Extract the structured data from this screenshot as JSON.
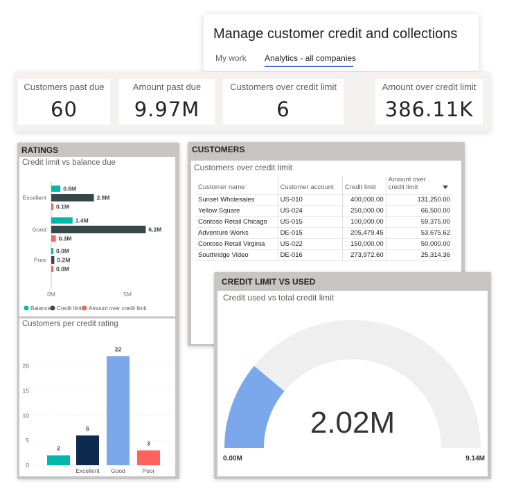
{
  "header": {
    "title": "Manage customer credit and collections",
    "tabs": [
      {
        "label": "My work"
      },
      {
        "label": "Analytics - all companies"
      }
    ]
  },
  "kpis": [
    {
      "label": "Customers past due",
      "value": "60"
    },
    {
      "label": "Amount past due",
      "value": "9.97M"
    },
    {
      "label": "Customers over credit limit",
      "value": "6"
    },
    {
      "label": "Amount over credit limit",
      "value": "386.11K"
    }
  ],
  "ratings": {
    "title": "RATINGS",
    "bar_chart_subtitle": "Credit limit vs balance due",
    "column_chart_subtitle": "Customers per credit rating"
  },
  "customers": {
    "title": "CUSTOMERS",
    "subtitle": "Customers over credit limit",
    "columns": [
      "Customer name",
      "Customer account",
      "Credit limit",
      "Amount over credit limit"
    ],
    "rows": [
      [
        "Sunset Wholesales",
        "US-010",
        "400,000.00",
        "131,250.00"
      ],
      [
        "Yellow Square",
        "US-024",
        "250,000.00",
        "66,500.00"
      ],
      [
        "Contoso Retail Chicago",
        "US-015",
        "100,000.00",
        "59,375.00"
      ],
      [
        "Adventure Works",
        "DE-015",
        "205,479.45",
        "53,675.62"
      ],
      [
        "Contoso Retail Virginia",
        "US-022",
        "150,000.00",
        "50,000.00"
      ],
      [
        "Southridge Video",
        "DE-016",
        "273,972.60",
        "25,314.36"
      ]
    ]
  },
  "gauge": {
    "title": "CREDIT LIMIT VS USED",
    "subtitle": "Credit used vs total credit limit"
  },
  "colors": {
    "teal": "#01b8aa",
    "dark": "#374649",
    "red": "#fd625e",
    "navy": "#0f2a4f",
    "blue": "#7aa8ea",
    "gauge_track": "#efefef"
  },
  "chart_data": [
    {
      "type": "bar",
      "orientation": "horizontal",
      "subtitle": "Credit limit vs balance due",
      "categories": [
        "Excellent",
        "Good",
        "Poor"
      ],
      "series": [
        {
          "name": "Balance",
          "values": [
            0.6,
            1.4,
            0.0
          ],
          "labels": [
            "0.6M",
            "1.4M",
            "0.0M"
          ]
        },
        {
          "name": "Credit limit",
          "values": [
            2.8,
            6.2,
            0.2
          ],
          "labels": [
            "2.8M",
            "6.2M",
            "0.2M"
          ]
        },
        {
          "name": "Amount over credit limit",
          "values": [
            0.1,
            0.3,
            0.0
          ],
          "labels": [
            "0.1M",
            "0.3M",
            "0.0M"
          ]
        }
      ],
      "xticks": [
        "0M",
        "5M"
      ],
      "xlim": [
        0,
        7
      ],
      "legend_position": "bottom"
    },
    {
      "type": "bar",
      "subtitle": "Customers per credit rating",
      "categories": [
        "",
        "Excellent",
        "Good",
        "Poor"
      ],
      "values": [
        2,
        6,
        22,
        3
      ],
      "yticks": [
        0,
        5,
        10,
        15,
        20
      ],
      "ylim": [
        0,
        24
      ],
      "grid": true
    },
    {
      "type": "gauge",
      "subtitle": "Credit used vs total credit limit",
      "value": 2.02,
      "value_label": "2.02M",
      "min_label": "0.00M",
      "max_label": "9.14M",
      "min": 0,
      "max": 9.14
    }
  ]
}
